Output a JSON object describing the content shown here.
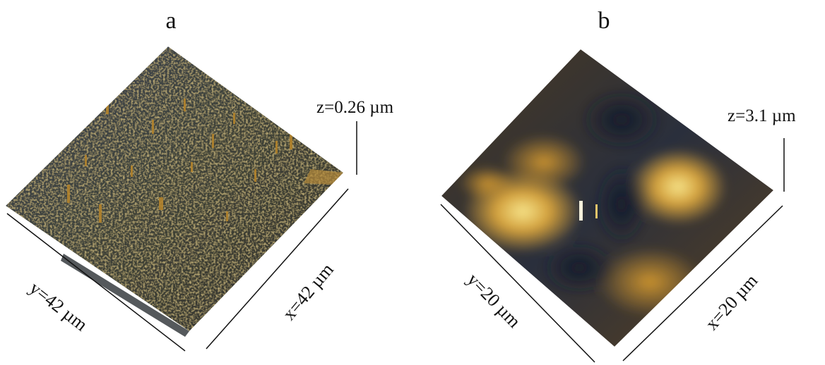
{
  "panels": [
    {
      "id": "a",
      "label": "a",
      "z_label": "z=0.26 µm",
      "x_label": "x=42 µm",
      "y_label": "y=42 µm",
      "surface_colors": {
        "low": "#2e3a4a",
        "mid": "#4a4a3a",
        "high": "#b9862a"
      }
    },
    {
      "id": "b",
      "label": "b",
      "z_label": "z=3.1 µm",
      "x_label": "x=20 µm",
      "y_label": "y=20 µm",
      "surface_colors": {
        "low": "#1f2940",
        "mid": "#7a5a2a",
        "high": "#f3dc73"
      }
    }
  ]
}
